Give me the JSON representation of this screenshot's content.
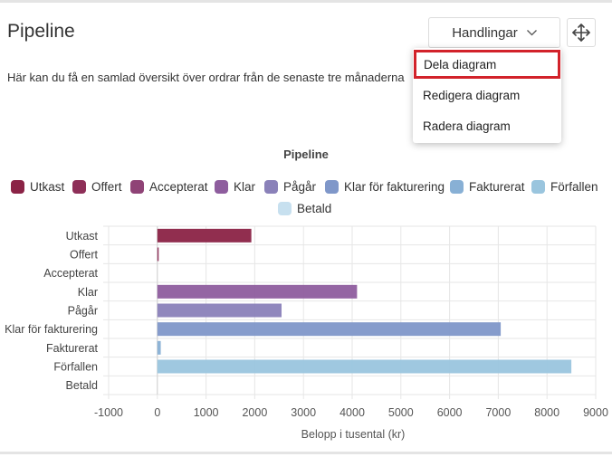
{
  "header": {
    "title": "Pipeline",
    "description": "Här kan du få en samlad översikt över ordrar från de senaste tre månaderna",
    "actions_label": "Handlingar"
  },
  "menu": {
    "items": [
      {
        "label": "Dela diagram",
        "highlighted": true
      },
      {
        "label": "Redigera diagram",
        "highlighted": false
      },
      {
        "label": "Radera diagram",
        "highlighted": false
      }
    ]
  },
  "colors": {
    "highlight_outline": "#d2222a"
  },
  "icons": {
    "actions": "chevron-down-icon",
    "move": "move-arrows-icon"
  },
  "chart_data": {
    "type": "bar",
    "orientation": "horizontal",
    "title": "Pipeline",
    "xlabel": "Belopp i tusental (kr)",
    "ylabel": "",
    "xlim": [
      -1000,
      9000
    ],
    "xticks": [
      "-1000",
      "0",
      "1000",
      "2000",
      "3000",
      "4000",
      "5000",
      "6000",
      "7000",
      "8000",
      "9000"
    ],
    "grid": true,
    "legend_position": "top",
    "categories": [
      "Utkast",
      "Offert",
      "Accepterat",
      "Klar",
      "Pågår",
      "Klar för fakturering",
      "Fakturerat",
      "Förfallen",
      "Betald"
    ],
    "values": [
      1930,
      15,
      0,
      4100,
      2550,
      7050,
      70,
      8500,
      0
    ],
    "colors": [
      "#8b2346",
      "#8e2f58",
      "#8f4376",
      "#8e5d9e",
      "#8a81b9",
      "#7f97c9",
      "#88b0d5",
      "#9ac5de",
      "#c7e0ef"
    ]
  }
}
